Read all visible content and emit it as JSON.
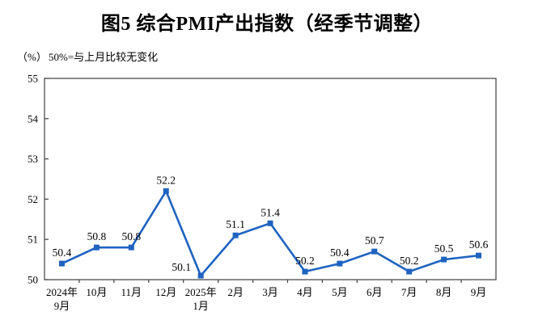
{
  "title": "图5 综合PMI产出指数（经季节调整）",
  "unit_label": "（%）",
  "note": "50%=与上月比较无变化",
  "colors": {
    "line": "#1e63c0",
    "marker": "#1e63c0",
    "axis": "#404040",
    "text": "#000000",
    "background": "#ffffff"
  },
  "chart_data": {
    "type": "line",
    "title": "图5 综合PMI产出指数（经季节调整）",
    "ylabel": "（%）",
    "annotation": "50%=与上月比较无变化",
    "categories": [
      "2024年\n9月",
      "10月",
      "11月",
      "12月",
      "2025年\n1月",
      "2月",
      "3月",
      "4月",
      "5月",
      "6月",
      "7月",
      "8月",
      "9月"
    ],
    "values": [
      50.4,
      50.8,
      50.8,
      52.2,
      50.1,
      51.1,
      51.4,
      50.2,
      50.4,
      50.7,
      50.2,
      50.5,
      50.6
    ],
    "data_labels": [
      "50.4",
      "50.8",
      "50.8",
      "52.2",
      "50.1",
      "51.1",
      "51.4",
      "50.2",
      "50.4",
      "50.7",
      "50.2",
      "50.5",
      "50.6"
    ],
    "ylim": [
      50,
      55
    ],
    "y_ticks": [
      50,
      51,
      52,
      53,
      54,
      55
    ],
    "grid": "off",
    "legend": "none",
    "marker": "square",
    "label_offsets": {
      "4": {
        "dx": -24,
        "dy": 3
      }
    }
  }
}
